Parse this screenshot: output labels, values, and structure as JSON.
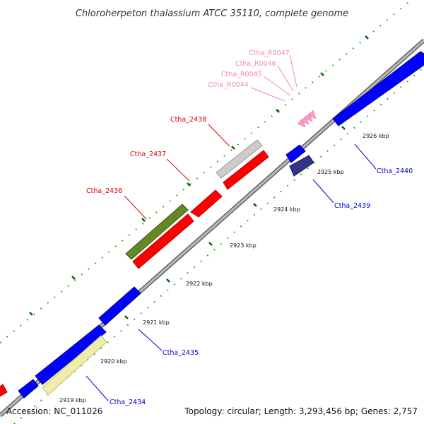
{
  "title": "Chloroherpeton thalassium ATCC 35110, complete genome",
  "footer": {
    "accession": "Accession: NC_011026",
    "summary": "Topology: circular; Length: 3,293,456 bp; Genes: 2,757"
  },
  "ticks": [
    {
      "label": "2919 kbp"
    },
    {
      "label": "2920 kbp"
    },
    {
      "label": "2921 kbp"
    },
    {
      "label": "2922 kbp"
    },
    {
      "label": "2923 kbp"
    },
    {
      "label": "2924 kbp"
    },
    {
      "label": "2925 kbp"
    },
    {
      "label": "2926 kbp"
    }
  ],
  "genes": [
    {
      "label": "Ctha_2434",
      "color": "#0000cc"
    },
    {
      "label": "Ctha_2435",
      "color": "#0000cc"
    },
    {
      "label": "Ctha_2436",
      "color": "#dd0000"
    },
    {
      "label": "Ctha_2437",
      "color": "#dd0000"
    },
    {
      "label": "Ctha_2438",
      "color": "#dd0000"
    },
    {
      "label": "Ctha_2439",
      "color": "#0000cc"
    },
    {
      "label": "Ctha_2440",
      "color": "#0000cc"
    },
    {
      "label": "Ctha_R0044",
      "color": "#ee88bb"
    },
    {
      "label": "Ctha_R0045",
      "color": "#ee88bb"
    },
    {
      "label": "Ctha_R0046",
      "color": "#ee88bb"
    },
    {
      "label": "Ctha_R0047",
      "color": "#ee88bb"
    }
  ],
  "colors": {
    "backbone": "#999999",
    "dots": "#009900",
    "blue_gene": "#0000ff",
    "red_gene": "#ff0000",
    "cog_gray": "#cccccc",
    "cog_olive": "#668822",
    "cog_yellow": "#eeeeaa",
    "cog_navy": "#333388",
    "trna_pink": "#ff99cc"
  }
}
